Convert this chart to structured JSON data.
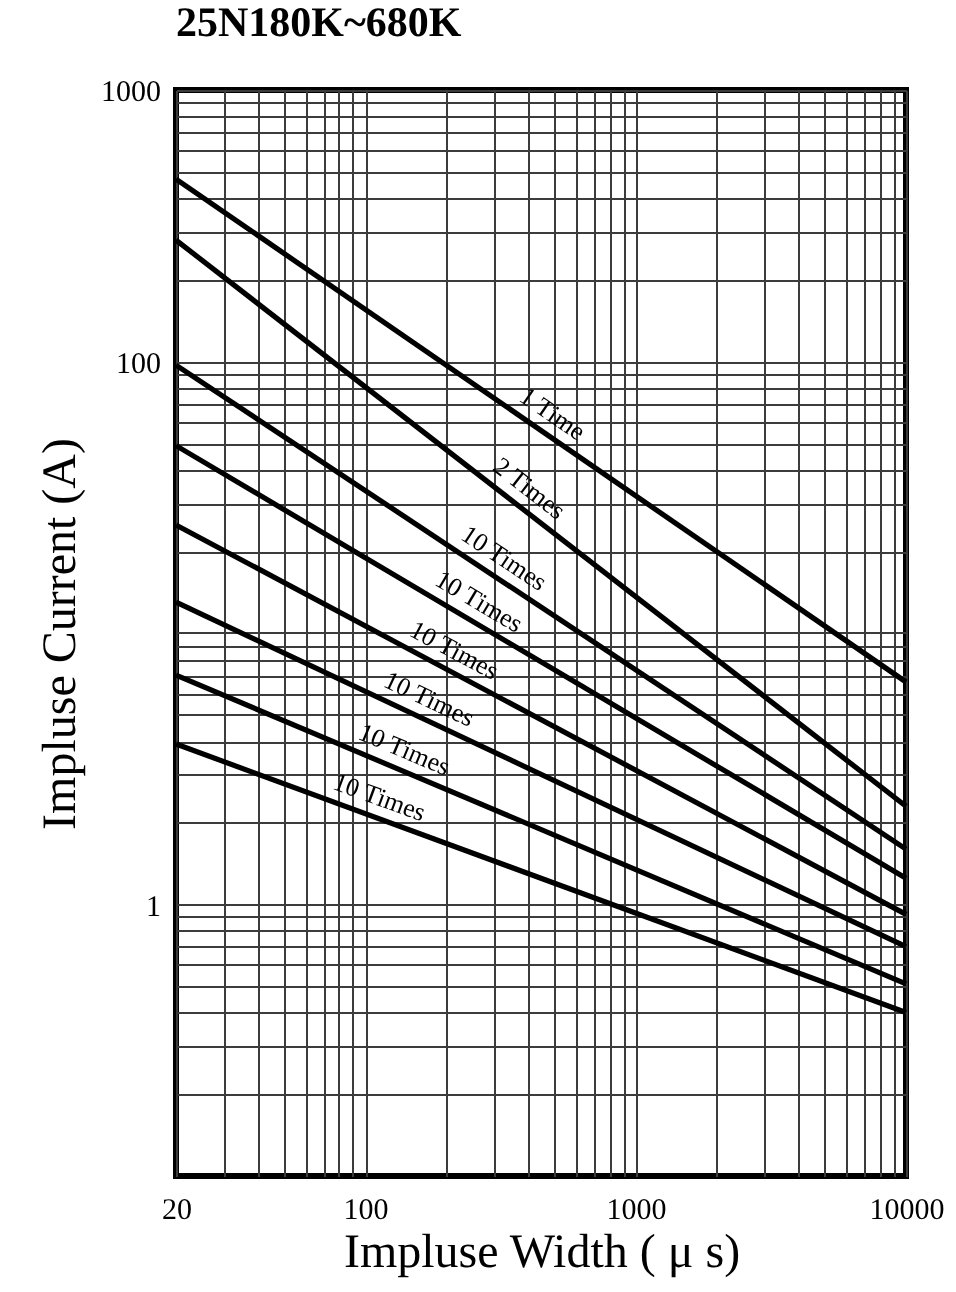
{
  "chart_data": {
    "type": "line",
    "title": "25N180K~680K",
    "xlabel": "Impluse Width ( μ s)",
    "ylabel": "Impluse Current (A)",
    "x": [
      20,
      10000
    ],
    "log": "xy",
    "xlim": [
      20,
      10000
    ],
    "ylim": [
      0.1,
      1000
    ],
    "xticks": [
      20,
      {
        "value": 30,
        "label": null
      },
      {
        "value": 40,
        "label": null
      },
      {
        "value": 50,
        "label": null
      },
      {
        "value": 60,
        "label": null
      },
      {
        "value": 70,
        "label": null
      },
      {
        "value": 80,
        "label": null
      },
      {
        "value": 90,
        "label": null
      },
      100,
      {
        "value": 200,
        "label": null
      },
      {
        "value": 300,
        "label": null
      },
      {
        "value": 400,
        "label": null
      },
      {
        "value": 500,
        "label": null
      },
      {
        "value": 600,
        "label": null
      },
      {
        "value": 700,
        "label": null
      },
      {
        "value": 800,
        "label": null
      },
      {
        "value": 900,
        "label": null
      },
      1000,
      {
        "value": 2000,
        "label": null
      },
      {
        "value": 3000,
        "label": null
      },
      {
        "value": 4000,
        "label": null
      },
      {
        "value": 5000,
        "label": null
      },
      {
        "value": 6000,
        "label": null
      },
      {
        "value": 7000,
        "label": null
      },
      {
        "value": 8000,
        "label": null
      },
      {
        "value": 9000,
        "label": null
      },
      10000
    ],
    "yticks": [
      {
        "value": 0.2,
        "label": null
      },
      {
        "value": 0.3,
        "label": null
      },
      {
        "value": 0.4,
        "label": null
      },
      {
        "value": 0.5,
        "label": null
      },
      {
        "value": 0.6,
        "label": null
      },
      {
        "value": 0.7,
        "label": null
      },
      {
        "value": 0.8,
        "label": null
      },
      {
        "value": 0.9,
        "label": null
      },
      1,
      {
        "value": 2,
        "label": null
      },
      {
        "value": 3,
        "label": null
      },
      {
        "value": 4,
        "label": null
      },
      {
        "value": 5,
        "label": null
      },
      {
        "value": 6,
        "label": null
      },
      {
        "value": 7,
        "label": null
      },
      {
        "value": 8,
        "label": null
      },
      {
        "value": 9,
        "label": null
      },
      {
        "value": 10,
        "label": null
      },
      {
        "value": 20,
        "label": null
      },
      {
        "value": 30,
        "label": null
      },
      {
        "value": 40,
        "label": null
      },
      {
        "value": 50,
        "label": null
      },
      {
        "value": 60,
        "label": null
      },
      {
        "value": 70,
        "label": null
      },
      {
        "value": 80,
        "label": null
      },
      {
        "value": 90,
        "label": null
      },
      100,
      {
        "value": 200,
        "label": null
      },
      {
        "value": 300,
        "label": null
      },
      {
        "value": 400,
        "label": null
      },
      {
        "value": 500,
        "label": null
      },
      {
        "value": 600,
        "label": null
      },
      {
        "value": 700,
        "label": null
      },
      {
        "value": 800,
        "label": null
      },
      {
        "value": 900,
        "label": null
      },
      1000
    ],
    "grid": true,
    "legend": false,
    "series": [
      {
        "name": "1 Time",
        "color": "#000000",
        "values": [
          470,
          6.6
        ]
      },
      {
        "name": "2 Times",
        "color": "#000000",
        "values": [
          280,
          2.3
        ]
      },
      {
        "name": "10 Times",
        "color": "#000000",
        "values": [
          97,
          1.6
        ]
      },
      {
        "name": "10 Times",
        "color": "#000000",
        "values": [
          49,
          1.25
        ]
      },
      {
        "name": "10 Times",
        "color": "#000000",
        "values": [
          25,
          0.92
        ]
      },
      {
        "name": "10 Times",
        "color": "#000000",
        "values": [
          13,
          0.7
        ]
      },
      {
        "name": "10 Times",
        "color": "#000000",
        "values": [
          7,
          0.51
        ]
      },
      {
        "name": "10 Times",
        "color": "#000000",
        "values": [
          3.9,
          0.4
        ]
      }
    ]
  }
}
